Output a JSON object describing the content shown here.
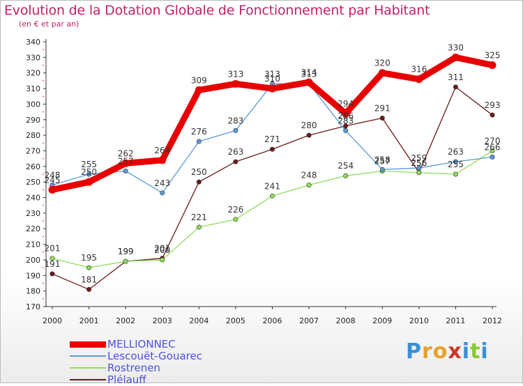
{
  "header": {
    "title": "Evolution de la Dotation Globale de Fonctionnement par Habitant",
    "subtitle": "(en € et par an)"
  },
  "logo": {
    "text": "Proxiti",
    "letters": [
      {
        "ch": "P",
        "color": "#3a8fd8"
      },
      {
        "ch": "r",
        "color": "#e8a02c"
      },
      {
        "ch": "o",
        "color": "#e8a02c"
      },
      {
        "ch": "x",
        "color": "#c83828"
      },
      {
        "ch": "i",
        "color": "#3a8fd8"
      },
      {
        "ch": "t",
        "color": "#8ac832"
      },
      {
        "ch": "i",
        "color": "#3a8fd8"
      }
    ]
  },
  "chart_data": {
    "type": "line",
    "title": "Evolution de la Dotation Globale de Fonctionnement par Habitant",
    "subtitle": "(en € et par an)",
    "x": [
      "2000",
      "2001",
      "2002",
      "2003",
      "2004",
      "2005",
      "2006",
      "2007",
      "2008",
      "2009",
      "2010",
      "2011",
      "2012"
    ],
    "ylim": [
      170,
      340
    ],
    "ystep": 10,
    "grid": false,
    "legend_position": "bottom-left",
    "series": [
      {
        "name": "MELLIONNEC",
        "color": "#e80000",
        "values": [
          245,
          250,
          262,
          264,
          309,
          313,
          310,
          314,
          294,
          320,
          316,
          330,
          325
        ]
      },
      {
        "name": "Lescouët-Gouarec",
        "color": "#5a9ad6",
        "values": [
          248,
          255,
          257,
          243,
          276,
          283,
          313,
          313,
          283,
          258,
          259,
          263,
          266
        ]
      },
      {
        "name": "Rostrenen",
        "color": "#90dc5a",
        "values": [
          201,
          195,
          199,
          200,
          221,
          226,
          241,
          248,
          254,
          257,
          256,
          255,
          270
        ]
      },
      {
        "name": "Plélauff",
        "color": "#6a1a1a",
        "values": [
          191,
          181,
          199,
          201,
          250,
          263,
          271,
          280,
          286,
          291,
          256,
          311,
          293
        ]
      }
    ]
  }
}
